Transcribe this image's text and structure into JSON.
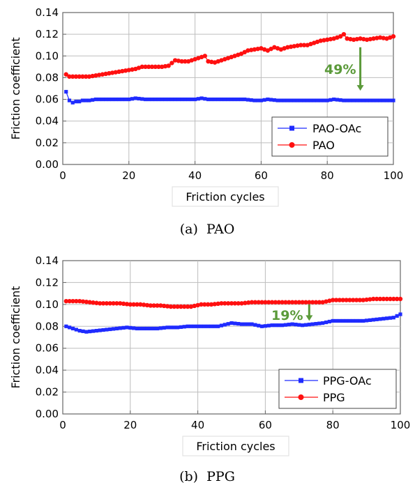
{
  "chart_data": [
    {
      "type": "line",
      "caption": "(a)  PAO",
      "xlabel": "Friction cycles",
      "ylabel": "Friction coefficient",
      "xlim": [
        0,
        100
      ],
      "ylim": [
        0,
        0.14
      ],
      "x_ticks": [
        "0",
        "20",
        "40",
        "60",
        "80",
        "100"
      ],
      "y_ticks": [
        "0.00",
        "0.02",
        "0.04",
        "0.06",
        "0.08",
        "0.10",
        "0.12",
        "0.14"
      ],
      "grid": true,
      "legend_position": "bottom-right",
      "series": [
        {
          "name": "PAO-OAc",
          "color": "#1f2bff",
          "marker": "square",
          "x": [
            1,
            2,
            3,
            4,
            5,
            6,
            8,
            10,
            12,
            15,
            18,
            20,
            22,
            25,
            28,
            30,
            32,
            35,
            38,
            40,
            42,
            44,
            46,
            48,
            50,
            52,
            55,
            58,
            60,
            62,
            65,
            68,
            70,
            72,
            75,
            78,
            80,
            82,
            85,
            88,
            90,
            92,
            95,
            98,
            100
          ],
          "y": [
            0.067,
            0.059,
            0.057,
            0.058,
            0.058,
            0.059,
            0.059,
            0.06,
            0.06,
            0.06,
            0.06,
            0.06,
            0.061,
            0.06,
            0.06,
            0.06,
            0.06,
            0.06,
            0.06,
            0.06,
            0.061,
            0.06,
            0.06,
            0.06,
            0.06,
            0.06,
            0.06,
            0.059,
            0.059,
            0.06,
            0.059,
            0.059,
            0.059,
            0.059,
            0.059,
            0.059,
            0.059,
            0.06,
            0.059,
            0.059,
            0.059,
            0.059,
            0.059,
            0.059,
            0.059
          ]
        },
        {
          "name": "PAO",
          "color": "#ff1010",
          "marker": "circle",
          "x": [
            1,
            2,
            3,
            4,
            6,
            8,
            10,
            12,
            14,
            16,
            18,
            20,
            22,
            24,
            26,
            28,
            30,
            32,
            34,
            36,
            38,
            40,
            42,
            43,
            44,
            46,
            48,
            50,
            52,
            54,
            56,
            58,
            60,
            62,
            64,
            66,
            68,
            70,
            72,
            74,
            76,
            78,
            80,
            82,
            84,
            85,
            86,
            88,
            90,
            92,
            94,
            96,
            98,
            100
          ],
          "y": [
            0.083,
            0.081,
            0.081,
            0.081,
            0.081,
            0.081,
            0.082,
            0.083,
            0.084,
            0.085,
            0.086,
            0.087,
            0.088,
            0.09,
            0.09,
            0.09,
            0.09,
            0.091,
            0.096,
            0.095,
            0.095,
            0.097,
            0.099,
            0.1,
            0.095,
            0.094,
            0.096,
            0.098,
            0.1,
            0.102,
            0.105,
            0.106,
            0.107,
            0.105,
            0.108,
            0.106,
            0.108,
            0.109,
            0.11,
            0.11,
            0.112,
            0.114,
            0.115,
            0.116,
            0.118,
            0.12,
            0.116,
            0.115,
            0.116,
            0.115,
            0.116,
            0.117,
            0.116,
            0.118
          ]
        }
      ],
      "annotation": {
        "text": "49%",
        "color": "#5b9a3a",
        "arrow_x": 90,
        "arrow_from": 0.108,
        "arrow_to": 0.068
      }
    },
    {
      "type": "line",
      "caption": "(b)  PPG",
      "xlabel": "Friction cycles",
      "ylabel": "Friction coefficient",
      "xlim": [
        0,
        100
      ],
      "ylim": [
        0,
        0.14
      ],
      "x_ticks": [
        "0",
        "20",
        "40",
        "60",
        "80",
        "100"
      ],
      "y_ticks": [
        "0.00",
        "0.02",
        "0.04",
        "0.06",
        "0.08",
        "0.10",
        "0.12",
        "0.14"
      ],
      "grid": true,
      "legend_position": "bottom-right",
      "series": [
        {
          "name": "PPG-OAc",
          "color": "#1f2bff",
          "marker": "square",
          "x": [
            1,
            3,
            5,
            7,
            10,
            13,
            16,
            19,
            22,
            25,
            28,
            31,
            34,
            37,
            40,
            43,
            46,
            50,
            53,
            56,
            59,
            62,
            65,
            68,
            71,
            74,
            77,
            80,
            83,
            86,
            89,
            92,
            95,
            98,
            100
          ],
          "y": [
            0.08,
            0.078,
            0.076,
            0.075,
            0.076,
            0.077,
            0.078,
            0.079,
            0.078,
            0.078,
            0.078,
            0.079,
            0.079,
            0.08,
            0.08,
            0.08,
            0.08,
            0.083,
            0.082,
            0.082,
            0.08,
            0.081,
            0.081,
            0.082,
            0.081,
            0.082,
            0.083,
            0.085,
            0.085,
            0.085,
            0.085,
            0.086,
            0.087,
            0.088,
            0.091
          ]
        },
        {
          "name": "PPG",
          "color": "#ff1010",
          "marker": "circle",
          "x": [
            1,
            3,
            5,
            8,
            11,
            14,
            17,
            20,
            23,
            26,
            29,
            32,
            35,
            38,
            41,
            44,
            47,
            50,
            53,
            56,
            59,
            62,
            65,
            68,
            71,
            74,
            77,
            80,
            83,
            86,
            89,
            92,
            95,
            98,
            100
          ],
          "y": [
            0.103,
            0.103,
            0.103,
            0.102,
            0.101,
            0.101,
            0.101,
            0.1,
            0.1,
            0.099,
            0.099,
            0.098,
            0.098,
            0.098,
            0.1,
            0.1,
            0.101,
            0.101,
            0.101,
            0.102,
            0.102,
            0.102,
            0.102,
            0.102,
            0.102,
            0.102,
            0.102,
            0.104,
            0.104,
            0.104,
            0.104,
            0.105,
            0.105,
            0.105,
            0.105
          ]
        }
      ],
      "annotation": {
        "text": "19%",
        "color": "#5b9a3a",
        "arrow_x": 73,
        "arrow_from": 0.1,
        "arrow_to": 0.085
      }
    }
  ]
}
